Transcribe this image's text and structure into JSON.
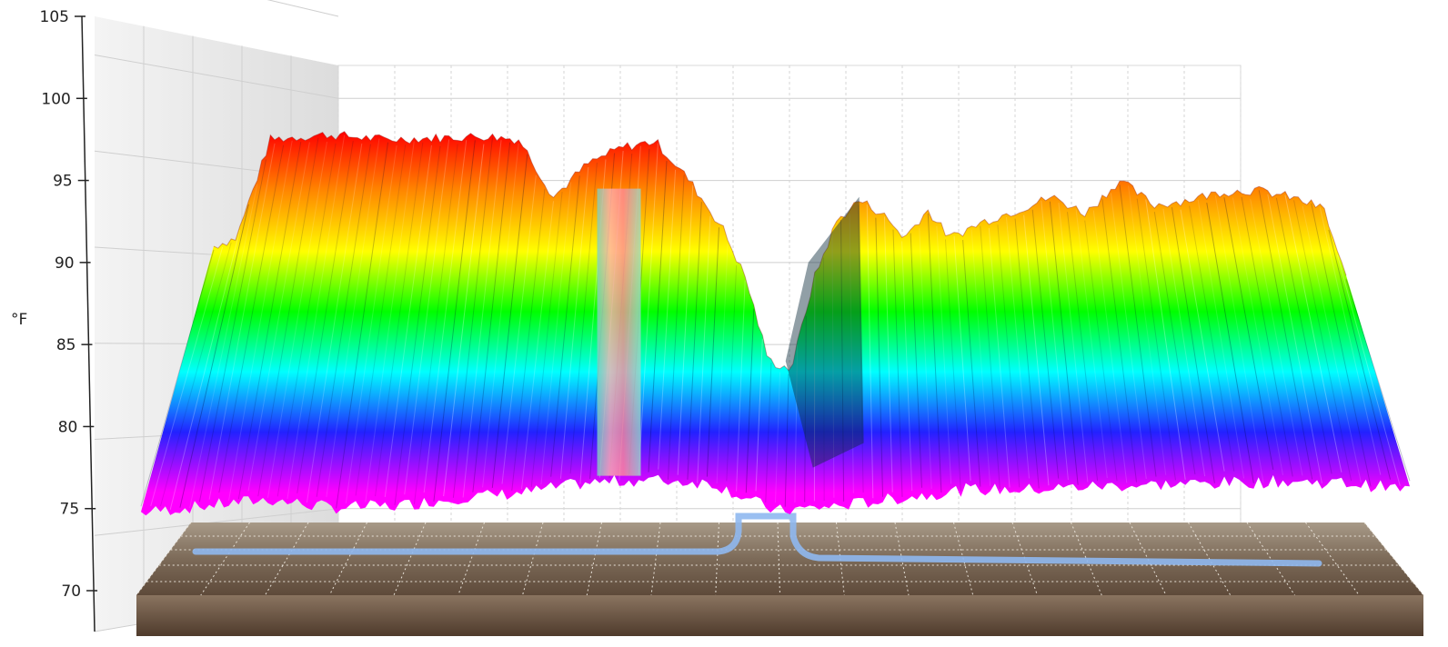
{
  "chart_data": {
    "type": "surface-3d",
    "title": "",
    "xlabel": "",
    "ylabel": "°F",
    "ylim": [
      70,
      105
    ],
    "yticks": [
      "70",
      "75",
      "80",
      "85",
      "90",
      "95",
      "100",
      "105"
    ],
    "grid": true,
    "legend": "none",
    "colormap": [
      "#ff00ff",
      "#2222ff",
      "#00ffff",
      "#00ff00",
      "#ffff00",
      "#ff8800",
      "#ff0000"
    ],
    "colormap_range": [
      76,
      98
    ],
    "profile_along_x": {
      "description_ticks": "none printed",
      "back_ridge": [
        [
          0.0,
          91
        ],
        [
          0.02,
          91.5
        ],
        [
          0.05,
          97.5
        ],
        [
          0.1,
          97.8
        ],
        [
          0.15,
          97.5
        ],
        [
          0.2,
          97.6
        ],
        [
          0.24,
          97.7
        ],
        [
          0.27,
          97.5
        ],
        [
          0.3,
          94
        ],
        [
          0.33,
          96
        ],
        [
          0.36,
          97
        ],
        [
          0.39,
          97.4
        ],
        [
          0.42,
          95
        ],
        [
          0.45,
          92
        ],
        [
          0.47,
          89
        ],
        [
          0.49,
          84
        ],
        [
          0.51,
          83.5
        ],
        [
          0.53,
          89
        ],
        [
          0.55,
          92.5
        ],
        [
          0.57,
          93.8
        ],
        [
          0.59,
          93
        ],
        [
          0.61,
          91.5
        ],
        [
          0.63,
          93.2
        ],
        [
          0.65,
          91.5
        ],
        [
          0.68,
          92.5
        ],
        [
          0.71,
          93.2
        ],
        [
          0.74,
          94
        ],
        [
          0.77,
          93
        ],
        [
          0.8,
          95
        ],
        [
          0.83,
          93.5
        ],
        [
          0.86,
          93.8
        ],
        [
          0.89,
          94.3
        ],
        [
          0.92,
          94.4
        ],
        [
          0.95,
          94
        ],
        [
          0.98,
          93.3
        ],
        [
          1.0,
          89
        ]
      ],
      "front_edge": [
        [
          0.0,
          75.2
        ],
        [
          0.05,
          75.6
        ],
        [
          0.1,
          76
        ],
        [
          0.15,
          75.5
        ],
        [
          0.2,
          75.6
        ],
        [
          0.25,
          76.1
        ],
        [
          0.3,
          76.4
        ],
        [
          0.35,
          77
        ],
        [
          0.4,
          77.2
        ],
        [
          0.45,
          77
        ],
        [
          0.5,
          75.3
        ],
        [
          0.55,
          75.6
        ],
        [
          0.6,
          76.1
        ],
        [
          0.65,
          76.6
        ],
        [
          0.7,
          76.6
        ],
        [
          0.75,
          76.8
        ],
        [
          0.8,
          76.9
        ],
        [
          0.85,
          77
        ],
        [
          0.9,
          77.1
        ],
        [
          0.95,
          77
        ],
        [
          1.0,
          76.6
        ]
      ]
    }
  }
}
